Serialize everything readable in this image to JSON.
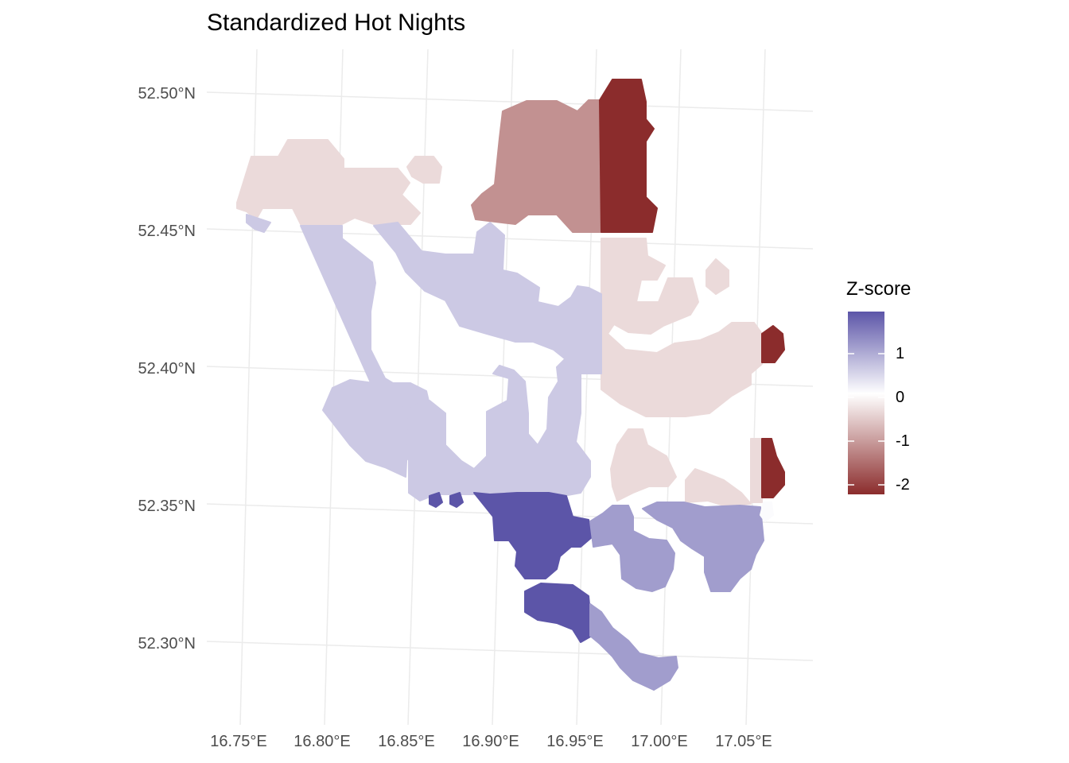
{
  "title": "Standardized Hot Nights",
  "y_axis_labels": [
    "52.30°N",
    "52.35°N",
    "52.40°N",
    "52.45°N",
    "52.50°N"
  ],
  "x_axis_labels": [
    "16.75°E",
    "16.80°E",
    "16.85°E",
    "16.90°E",
    "16.95°E",
    "17.00°E",
    "17.05°E"
  ],
  "legend": {
    "title": "Z-score",
    "labels": [
      "1",
      "0",
      "-1",
      "-2"
    ],
    "range": [
      -2.3,
      1.9
    ],
    "colors": {
      "low": "#8b2c2c",
      "mid": "#ffffff",
      "high": "#5c55a8"
    }
  },
  "colors": {
    "grid": "#ebebeb",
    "axis_text": "#4d4d4d"
  },
  "map_data": {
    "type": "hexbin",
    "value_scale": "Z-score",
    "regions": [
      {
        "name": "northwest",
        "z": -0.4
      },
      {
        "name": "north-center",
        "z": -1.2
      },
      {
        "name": "northeast-column",
        "z": -2.3
      },
      {
        "name": "east-branches",
        "z": -0.4
      },
      {
        "name": "east-edge",
        "z": -2.3
      },
      {
        "name": "center-west",
        "z": 0.6
      },
      {
        "name": "south-center",
        "z": 1.9
      },
      {
        "name": "southeast",
        "z": 1.1
      },
      {
        "name": "far-southeast",
        "z": 0.05
      }
    ]
  }
}
